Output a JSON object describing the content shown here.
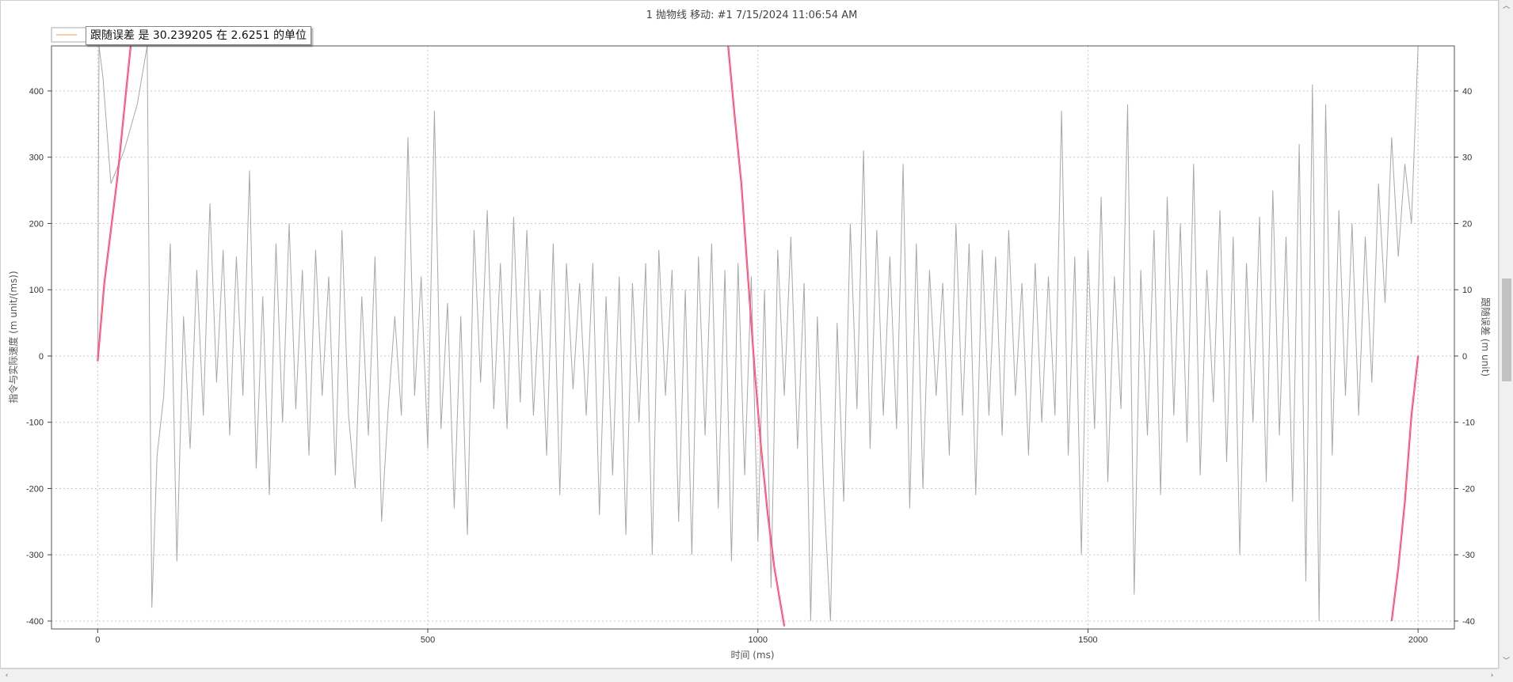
{
  "window": {
    "title": "1 抛物线 移动: #1 7/15/2024 11:06:54 AM",
    "scroll_up_glyph": "︿",
    "scroll_down_glyph": "﹀",
    "scroll_left_glyph": "‹",
    "scroll_right_glyph": "›"
  },
  "tooltip": {
    "text": "跟随误差 是 30.239205 在 2.6251 的单位"
  },
  "colors": {
    "noise_series": "#a8a8a8",
    "error_series": "#ff2ad4",
    "error_series_core": "#ff9a00",
    "grid": "#c8c8c8",
    "legend_line": "#e8a13a"
  },
  "chart_data": {
    "type": "line",
    "title": "1 抛物线 移动: #1 7/15/2024 11:06:54 AM",
    "xlabel": "时间 (ms)",
    "ylabel": "指令与实际速度 (m unit/(ms))",
    "y2label": "跟随误差 (m unit)",
    "xlim": [
      -70,
      2055
    ],
    "ylim": [
      -412,
      468
    ],
    "y2lim": [
      -41.2,
      46.8
    ],
    "x_ticks": [
      0,
      500,
      1000,
      1500,
      2000
    ],
    "y_ticks": [
      -400,
      -300,
      -200,
      -100,
      0,
      100,
      200,
      300,
      400
    ],
    "y2_ticks": [
      -40,
      -30,
      -20,
      -10,
      0,
      10,
      20,
      30,
      40
    ],
    "grid": true,
    "legend_position": "top-left",
    "series": [
      {
        "axis": "left",
        "style": "noise",
        "description_points": [
          [
            0,
            0
          ],
          [
            2,
            470
          ],
          [
            8,
            420
          ],
          [
            20,
            260
          ],
          [
            40,
            310
          ],
          [
            60,
            380
          ],
          [
            75,
            470
          ],
          [
            82,
            -380
          ],
          [
            90,
            -150
          ],
          [
            100,
            -60
          ],
          [
            110,
            170
          ],
          [
            120,
            -310
          ],
          [
            130,
            60
          ],
          [
            140,
            -140
          ],
          [
            150,
            130
          ],
          [
            160,
            -90
          ],
          [
            170,
            230
          ],
          [
            180,
            -40
          ],
          [
            190,
            160
          ],
          [
            200,
            -120
          ],
          [
            210,
            150
          ],
          [
            220,
            -60
          ],
          [
            230,
            280
          ],
          [
            240,
            -170
          ],
          [
            250,
            90
          ],
          [
            260,
            -210
          ],
          [
            270,
            170
          ],
          [
            280,
            -100
          ],
          [
            290,
            200
          ],
          [
            300,
            -80
          ],
          [
            310,
            130
          ],
          [
            320,
            -150
          ],
          [
            330,
            160
          ],
          [
            340,
            -60
          ],
          [
            350,
            120
          ],
          [
            360,
            -180
          ],
          [
            370,
            190
          ],
          [
            380,
            -90
          ],
          [
            390,
            -200
          ],
          [
            400,
            90
          ],
          [
            410,
            -120
          ],
          [
            420,
            150
          ],
          [
            430,
            -250
          ],
          [
            440,
            -80
          ],
          [
            450,
            60
          ],
          [
            460,
            -90
          ],
          [
            470,
            330
          ],
          [
            480,
            -60
          ],
          [
            490,
            120
          ],
          [
            500,
            -140
          ],
          [
            510,
            370
          ],
          [
            520,
            -110
          ],
          [
            530,
            80
          ],
          [
            540,
            -230
          ],
          [
            550,
            60
          ],
          [
            560,
            -270
          ],
          [
            570,
            190
          ],
          [
            580,
            -40
          ],
          [
            590,
            220
          ],
          [
            600,
            -80
          ],
          [
            610,
            140
          ],
          [
            620,
            -110
          ],
          [
            630,
            210
          ],
          [
            640,
            -70
          ],
          [
            650,
            190
          ],
          [
            660,
            -90
          ],
          [
            670,
            100
          ],
          [
            680,
            -150
          ],
          [
            690,
            170
          ],
          [
            700,
            -210
          ],
          [
            710,
            140
          ],
          [
            720,
            -50
          ],
          [
            730,
            110
          ],
          [
            740,
            -90
          ],
          [
            750,
            140
          ],
          [
            760,
            -240
          ],
          [
            770,
            90
          ],
          [
            780,
            -180
          ],
          [
            790,
            120
          ],
          [
            800,
            -270
          ],
          [
            810,
            110
          ],
          [
            820,
            -100
          ],
          [
            830,
            140
          ],
          [
            840,
            -300
          ],
          [
            850,
            160
          ],
          [
            860,
            -60
          ],
          [
            870,
            130
          ],
          [
            880,
            -250
          ],
          [
            890,
            100
          ],
          [
            900,
            -300
          ],
          [
            910,
            150
          ],
          [
            920,
            -120
          ],
          [
            930,
            170
          ],
          [
            940,
            -230
          ],
          [
            950,
            130
          ],
          [
            960,
            -310
          ],
          [
            970,
            140
          ],
          [
            980,
            -180
          ],
          [
            990,
            120
          ],
          [
            1000,
            -280
          ],
          [
            1010,
            100
          ],
          [
            1020,
            -350
          ],
          [
            1030,
            160
          ],
          [
            1040,
            -60
          ],
          [
            1050,
            180
          ],
          [
            1060,
            -140
          ],
          [
            1070,
            110
          ],
          [
            1080,
            -400
          ],
          [
            1090,
            60
          ],
          [
            1100,
            -210
          ],
          [
            1110,
            -400
          ],
          [
            1120,
            50
          ],
          [
            1130,
            -220
          ],
          [
            1140,
            200
          ],
          [
            1150,
            -80
          ],
          [
            1160,
            310
          ],
          [
            1170,
            -140
          ],
          [
            1180,
            190
          ],
          [
            1190,
            -90
          ],
          [
            1200,
            150
          ],
          [
            1210,
            -110
          ],
          [
            1220,
            290
          ],
          [
            1230,
            -230
          ],
          [
            1240,
            170
          ],
          [
            1250,
            -200
          ],
          [
            1260,
            130
          ],
          [
            1270,
            -60
          ],
          [
            1280,
            110
          ],
          [
            1290,
            -150
          ],
          [
            1300,
            200
          ],
          [
            1310,
            -90
          ],
          [
            1320,
            170
          ],
          [
            1330,
            -210
          ],
          [
            1340,
            160
          ],
          [
            1350,
            -90
          ],
          [
            1360,
            150
          ],
          [
            1370,
            -120
          ],
          [
            1380,
            190
          ],
          [
            1390,
            -60
          ],
          [
            1400,
            110
          ],
          [
            1410,
            -150
          ],
          [
            1420,
            140
          ],
          [
            1430,
            -100
          ],
          [
            1440,
            120
          ],
          [
            1450,
            -90
          ],
          [
            1460,
            370
          ],
          [
            1470,
            -150
          ],
          [
            1480,
            150
          ],
          [
            1490,
            -300
          ],
          [
            1500,
            160
          ],
          [
            1510,
            -110
          ],
          [
            1520,
            240
          ],
          [
            1530,
            -190
          ],
          [
            1540,
            120
          ],
          [
            1550,
            -80
          ],
          [
            1560,
            380
          ],
          [
            1570,
            -360
          ],
          [
            1580,
            130
          ],
          [
            1590,
            -120
          ],
          [
            1600,
            190
          ],
          [
            1610,
            -210
          ],
          [
            1620,
            240
          ],
          [
            1630,
            -90
          ],
          [
            1640,
            200
          ],
          [
            1650,
            -130
          ],
          [
            1660,
            290
          ],
          [
            1670,
            -180
          ],
          [
            1680,
            130
          ],
          [
            1690,
            -70
          ],
          [
            1700,
            220
          ],
          [
            1710,
            -160
          ],
          [
            1720,
            180
          ],
          [
            1730,
            -300
          ],
          [
            1740,
            140
          ],
          [
            1750,
            -100
          ],
          [
            1760,
            210
          ],
          [
            1770,
            -190
          ],
          [
            1780,
            250
          ],
          [
            1790,
            -120
          ],
          [
            1800,
            180
          ],
          [
            1810,
            -220
          ],
          [
            1820,
            320
          ],
          [
            1830,
            -340
          ],
          [
            1840,
            410
          ],
          [
            1850,
            -400
          ],
          [
            1860,
            380
          ],
          [
            1870,
            -150
          ],
          [
            1880,
            220
          ],
          [
            1890,
            -60
          ],
          [
            1900,
            200
          ],
          [
            1910,
            -90
          ],
          [
            1920,
            180
          ],
          [
            1930,
            -40
          ],
          [
            1940,
            260
          ],
          [
            1950,
            80
          ],
          [
            1960,
            330
          ],
          [
            1970,
            150
          ],
          [
            1980,
            290
          ],
          [
            1990,
            200
          ],
          [
            2000,
            470
          ]
        ]
      },
      {
        "axis": "right",
        "style": "error",
        "segments": [
          [
            [
              0,
              -0.8
            ],
            [
              10,
              11
            ],
            [
              20,
              19
            ],
            [
              30,
              27
            ],
            [
              40,
              37
            ],
            [
              50,
              46.8
            ]
          ],
          [
            [
              955,
              46.8
            ],
            [
              965,
              36
            ],
            [
              975,
              26
            ],
            [
              985,
              12
            ],
            [
              995,
              -2
            ],
            [
              1005,
              -14
            ],
            [
              1015,
              -24
            ],
            [
              1025,
              -32
            ],
            [
              1040,
              -40.8
            ]
          ],
          [
            [
              1960,
              -40
            ],
            [
              1970,
              -32
            ],
            [
              1980,
              -22
            ],
            [
              1990,
              -9
            ],
            [
              2000,
              0
            ]
          ]
        ]
      }
    ]
  }
}
